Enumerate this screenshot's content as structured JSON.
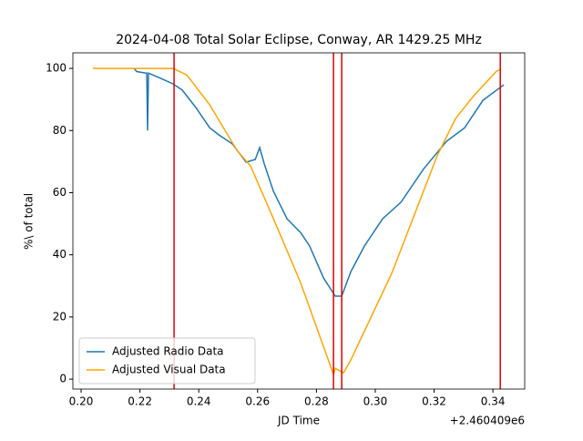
{
  "chart_data": {
    "type": "line",
    "title": "2024-04-08 Total Solar Eclipse, Conway, AR 1429.25 MHz",
    "x_label": "JD Time",
    "y_label": "%\\ of total",
    "x_offset_label": "+2.460409e6",
    "xlim": [
      0.1972,
      0.3508
    ],
    "ylim": [
      -3.2,
      105
    ],
    "xticks": [
      {
        "value": 0.2,
        "label": "0.20"
      },
      {
        "value": 0.22,
        "label": "0.22"
      },
      {
        "value": 0.24,
        "label": "0.24"
      },
      {
        "value": 0.26,
        "label": "0.26"
      },
      {
        "value": 0.28,
        "label": "0.28"
      },
      {
        "value": 0.3,
        "label": "0.30"
      },
      {
        "value": 0.32,
        "label": "0.32"
      },
      {
        "value": 0.34,
        "label": "0.34"
      }
    ],
    "yticks": [
      0,
      20,
      40,
      60,
      80,
      100
    ],
    "legend": "lower left",
    "vlines": {
      "color": "#e00000",
      "x": [
        0.2316,
        0.2858,
        0.2886,
        0.3425
      ]
    },
    "series": [
      {
        "name": "Adjusted Radio Data",
        "color": "#1f77b4",
        "x": [
          0.218,
          0.2189,
          0.222,
          0.2223,
          0.2226,
          0.2229,
          0.2266,
          0.2313,
          0.2344,
          0.239,
          0.2437,
          0.2468,
          0.2514,
          0.2561,
          0.2592,
          0.2607,
          0.2623,
          0.2654,
          0.27,
          0.2746,
          0.2777,
          0.2824,
          0.2864,
          0.2886,
          0.2917,
          0.2963,
          0.3025,
          0.3087,
          0.3165,
          0.3242,
          0.3304,
          0.3366,
          0.3428,
          0.3437
        ],
        "values": [
          100,
          99,
          98.5,
          98.5,
          80,
          98.5,
          97,
          95,
          93,
          87.4,
          80.9,
          78.6,
          75.7,
          69.8,
          70.7,
          74.5,
          69.2,
          60.4,
          51.6,
          47.2,
          42.8,
          32.6,
          26.7,
          26.7,
          34.6,
          42.8,
          51.6,
          56.9,
          67.7,
          76.5,
          80.9,
          89.7,
          94.1,
          94.7
        ]
      },
      {
        "name": "Adjusted Visual Data",
        "color": "#ffa500",
        "x": [
          0.204,
          0.2158,
          0.222,
          0.2313,
          0.2359,
          0.2437,
          0.253,
          0.2576,
          0.2654,
          0.2746,
          0.2858,
          0.2864,
          0.2892,
          0.2917,
          0.3056,
          0.3211,
          0.3273,
          0.3335,
          0.3412,
          0.3428
        ],
        "values": [
          100,
          100,
          100,
          100,
          97.9,
          88.3,
          73.6,
          68.6,
          51.6,
          31.1,
          1.5,
          3.5,
          2,
          6.2,
          34,
          72,
          83.9,
          91.2,
          99.1,
          99.7
        ]
      }
    ]
  }
}
